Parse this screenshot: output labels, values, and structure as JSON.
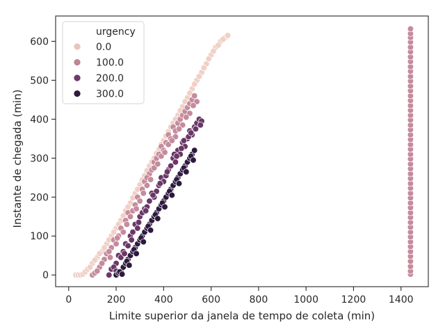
{
  "chart_data": {
    "type": "scatter",
    "title": "",
    "xlabel": "Limite superior da janela de tempo de coleta (min)",
    "ylabel": "Instante de chegada (min)",
    "xlim": [
      -55,
      1515
    ],
    "ylim": [
      -30,
      665
    ],
    "xticks": [
      0,
      200,
      400,
      600,
      800,
      1000,
      1200,
      1400
    ],
    "yticks": [
      0,
      100,
      200,
      300,
      400,
      500,
      600
    ],
    "grid": false,
    "legend": {
      "title": "urgency",
      "placement": "top-left",
      "entries": [
        {
          "label": "0.0",
          "color": "#e8c4bd"
        },
        {
          "label": "100.0",
          "color": "#c08496"
        },
        {
          "label": "200.0",
          "color": "#6e3a6a"
        },
        {
          "label": "300.0",
          "color": "#2d1a3e"
        }
      ]
    },
    "hue_scale": {
      "min": 0,
      "max": 300,
      "colors": [
        "#f0d0c7",
        "#c58b9c",
        "#6a3766",
        "#2d1a3e"
      ]
    },
    "series": [
      {
        "urgency": 0,
        "points": [
          [
            30,
            0
          ],
          [
            40,
            0
          ],
          [
            50,
            0
          ],
          [
            60,
            2
          ],
          [
            70,
            8
          ],
          [
            80,
            15
          ],
          [
            100,
            30
          ],
          [
            120,
            45
          ],
          [
            140,
            60
          ],
          [
            160,
            80
          ],
          [
            180,
            100
          ],
          [
            200,
            120
          ],
          [
            220,
            140
          ],
          [
            240,
            165
          ],
          [
            260,
            185
          ],
          [
            280,
            210
          ],
          [
            300,
            232
          ],
          [
            320,
            255
          ],
          [
            340,
            280
          ],
          [
            360,
            300
          ],
          [
            380,
            322
          ],
          [
            400,
            345
          ],
          [
            420,
            368
          ],
          [
            440,
            390
          ],
          [
            460,
            410
          ],
          [
            480,
            432
          ],
          [
            500,
            455
          ],
          [
            520,
            478
          ],
          [
            540,
            500
          ],
          [
            560,
            520
          ],
          [
            580,
            542
          ],
          [
            600,
            565
          ],
          [
            620,
            585
          ],
          [
            640,
            600
          ],
          [
            660,
            610
          ],
          [
            670,
            615
          ],
          [
            90,
            20
          ],
          [
            110,
            38
          ],
          [
            130,
            55
          ],
          [
            150,
            70
          ],
          [
            170,
            90
          ],
          [
            190,
            110
          ],
          [
            210,
            130
          ],
          [
            230,
            152
          ],
          [
            250,
            175
          ],
          [
            270,
            198
          ],
          [
            290,
            220
          ],
          [
            310,
            244
          ],
          [
            330,
            268
          ],
          [
            350,
            290
          ],
          [
            370,
            312
          ],
          [
            390,
            335
          ],
          [
            410,
            357
          ],
          [
            430,
            380
          ],
          [
            450,
            400
          ],
          [
            470,
            422
          ],
          [
            490,
            445
          ],
          [
            510,
            467
          ],
          [
            530,
            490
          ],
          [
            550,
            510
          ],
          [
            570,
            532
          ],
          [
            590,
            555
          ],
          [
            610,
            575
          ],
          [
            630,
            590
          ],
          [
            650,
            605
          ]
        ]
      },
      {
        "urgency": 100,
        "points": [
          [
            100,
            0
          ],
          [
            110,
            5
          ],
          [
            130,
            20
          ],
          [
            150,
            40
          ],
          [
            160,
            55
          ],
          [
            180,
            70
          ],
          [
            190,
            90
          ],
          [
            210,
            100
          ],
          [
            220,
            120
          ],
          [
            240,
            140
          ],
          [
            250,
            160
          ],
          [
            260,
            150
          ],
          [
            280,
            180
          ],
          [
            290,
            200
          ],
          [
            300,
            190
          ],
          [
            310,
            220
          ],
          [
            320,
            240
          ],
          [
            330,
            230
          ],
          [
            340,
            260
          ],
          [
            350,
            270
          ],
          [
            360,
            290
          ],
          [
            370,
            300
          ],
          [
            380,
            310
          ],
          [
            390,
            330
          ],
          [
            400,
            320
          ],
          [
            410,
            340
          ],
          [
            420,
            360
          ],
          [
            430,
            350
          ],
          [
            440,
            380
          ],
          [
            450,
            370
          ],
          [
            460,
            390
          ],
          [
            470,
            400
          ],
          [
            480,
            410
          ],
          [
            490,
            420
          ],
          [
            500,
            430
          ],
          [
            510,
            440
          ],
          [
            520,
            450
          ],
          [
            530,
            460
          ],
          [
            140,
            30
          ],
          [
            170,
            60
          ],
          [
            200,
            80
          ],
          [
            230,
            110
          ],
          [
            270,
            165
          ],
          [
            330,
            250
          ],
          [
            360,
            275
          ],
          [
            390,
            305
          ],
          [
            420,
            335
          ],
          [
            450,
            355
          ],
          [
            480,
            385
          ],
          [
            510,
            415
          ],
          [
            540,
            445
          ],
          [
            120,
            10
          ],
          [
            175,
            45
          ],
          [
            205,
            95
          ],
          [
            245,
            130
          ],
          [
            285,
            170
          ],
          [
            315,
            210
          ],
          [
            345,
            245
          ],
          [
            375,
            285
          ],
          [
            405,
            315
          ],
          [
            435,
            345
          ],
          [
            465,
            375
          ],
          [
            495,
            405
          ],
          [
            525,
            435
          ],
          [
            1440,
            2
          ],
          [
            1440,
            10
          ],
          [
            1440,
            22
          ],
          [
            1440,
            35
          ],
          [
            1440,
            48
          ],
          [
            1440,
            60
          ],
          [
            1440,
            73
          ],
          [
            1440,
            85
          ],
          [
            1440,
            98
          ],
          [
            1440,
            110
          ],
          [
            1440,
            123
          ],
          [
            1440,
            135
          ],
          [
            1440,
            148
          ],
          [
            1440,
            160
          ],
          [
            1440,
            173
          ],
          [
            1440,
            185
          ],
          [
            1440,
            198
          ],
          [
            1440,
            210
          ],
          [
            1440,
            223
          ],
          [
            1440,
            235
          ],
          [
            1440,
            248
          ],
          [
            1440,
            260
          ],
          [
            1440,
            273
          ],
          [
            1440,
            285
          ],
          [
            1440,
            298
          ],
          [
            1440,
            310
          ],
          [
            1440,
            323
          ],
          [
            1440,
            335
          ],
          [
            1440,
            348
          ],
          [
            1440,
            360
          ],
          [
            1440,
            373
          ],
          [
            1440,
            385
          ],
          [
            1440,
            398
          ],
          [
            1440,
            410
          ],
          [
            1440,
            423
          ],
          [
            1440,
            435
          ],
          [
            1440,
            448
          ],
          [
            1440,
            460
          ],
          [
            1440,
            473
          ],
          [
            1440,
            485
          ],
          [
            1440,
            498
          ],
          [
            1440,
            510
          ],
          [
            1440,
            523
          ],
          [
            1440,
            535
          ],
          [
            1440,
            548
          ],
          [
            1440,
            560
          ],
          [
            1440,
            573
          ],
          [
            1440,
            585
          ],
          [
            1440,
            598
          ],
          [
            1440,
            610
          ],
          [
            1440,
            620
          ],
          [
            1440,
            632
          ]
        ]
      },
      {
        "urgency": 200,
        "points": [
          [
            170,
            0
          ],
          [
            180,
            15
          ],
          [
            200,
            30
          ],
          [
            210,
            50
          ],
          [
            230,
            60
          ],
          [
            240,
            80
          ],
          [
            260,
            100
          ],
          [
            270,
            110
          ],
          [
            280,
            130
          ],
          [
            300,
            150
          ],
          [
            310,
            160
          ],
          [
            320,
            170
          ],
          [
            340,
            190
          ],
          [
            350,
            210
          ],
          [
            360,
            200
          ],
          [
            380,
            230
          ],
          [
            390,
            250
          ],
          [
            400,
            240
          ],
          [
            420,
            270
          ],
          [
            430,
            280
          ],
          [
            440,
            300
          ],
          [
            450,
            290
          ],
          [
            460,
            320
          ],
          [
            470,
            310
          ],
          [
            480,
            340
          ],
          [
            490,
            330
          ],
          [
            500,
            350
          ],
          [
            510,
            370
          ],
          [
            520,
            360
          ],
          [
            530,
            380
          ],
          [
            540,
            390
          ],
          [
            550,
            400
          ],
          [
            560,
            395
          ],
          [
            190,
            20
          ],
          [
            220,
            45
          ],
          [
            250,
            75
          ],
          [
            290,
            120
          ],
          [
            330,
            175
          ],
          [
            370,
            215
          ],
          [
            410,
            255
          ],
          [
            445,
            310
          ],
          [
            475,
            325
          ],
          [
            505,
            355
          ],
          [
            535,
            375
          ],
          [
            555,
            385
          ],
          [
            200,
            10
          ],
          [
            235,
            55
          ],
          [
            265,
            90
          ],
          [
            295,
            135
          ],
          [
            325,
            165
          ],
          [
            355,
            205
          ],
          [
            385,
            235
          ],
          [
            415,
            265
          ],
          [
            455,
            305
          ],
          [
            485,
            345
          ],
          [
            515,
            365
          ]
        ]
      },
      {
        "urgency": 300,
        "points": [
          [
            200,
            0
          ],
          [
            210,
            5
          ],
          [
            220,
            10
          ],
          [
            230,
            20
          ],
          [
            240,
            30
          ],
          [
            250,
            40
          ],
          [
            260,
            50
          ],
          [
            270,
            60
          ],
          [
            280,
            70
          ],
          [
            290,
            80
          ],
          [
            300,
            90
          ],
          [
            310,
            100
          ],
          [
            320,
            110
          ],
          [
            330,
            120
          ],
          [
            340,
            130
          ],
          [
            350,
            140
          ],
          [
            360,
            150
          ],
          [
            370,
            160
          ],
          [
            380,
            170
          ],
          [
            390,
            180
          ],
          [
            400,
            190
          ],
          [
            410,
            200
          ],
          [
            420,
            210
          ],
          [
            430,
            220
          ],
          [
            440,
            230
          ],
          [
            450,
            240
          ],
          [
            460,
            250
          ],
          [
            470,
            260
          ],
          [
            480,
            270
          ],
          [
            490,
            280
          ],
          [
            500,
            290
          ],
          [
            510,
            300
          ],
          [
            520,
            310
          ],
          [
            530,
            320
          ],
          [
            215,
            8
          ],
          [
            245,
            35
          ],
          [
            275,
            65
          ],
          [
            305,
            95
          ],
          [
            335,
            125
          ],
          [
            365,
            155
          ],
          [
            395,
            185
          ],
          [
            425,
            215
          ],
          [
            455,
            245
          ],
          [
            485,
            275
          ],
          [
            515,
            305
          ],
          [
            225,
            2
          ],
          [
            255,
            25
          ],
          [
            285,
            55
          ],
          [
            315,
            85
          ],
          [
            345,
            115
          ],
          [
            375,
            145
          ],
          [
            405,
            175
          ],
          [
            435,
            205
          ],
          [
            465,
            235
          ],
          [
            495,
            265
          ],
          [
            525,
            295
          ]
        ]
      }
    ]
  }
}
